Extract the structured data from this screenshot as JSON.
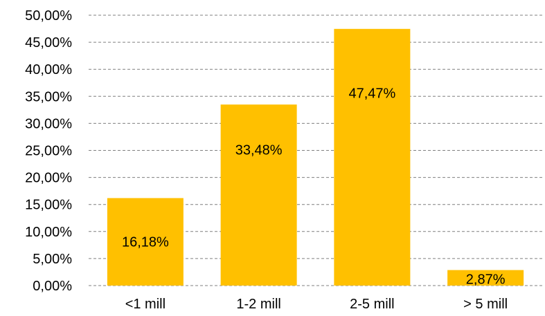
{
  "chart_data": {
    "type": "bar",
    "categories": [
      "<1 mill",
      "1-2 mill",
      "2-5 mill",
      "> 5 mill"
    ],
    "values": [
      16.18,
      33.48,
      47.47,
      2.87
    ],
    "data_labels": [
      "16,18%",
      "33,48%",
      "47,47%",
      "2,87%"
    ],
    "ylim": [
      0,
      50
    ],
    "y_ticks": [
      0,
      5,
      10,
      15,
      20,
      25,
      30,
      35,
      40,
      45,
      50
    ],
    "y_tick_labels": [
      "0,00%",
      "5,00%",
      "10,00%",
      "15,00%",
      "20,00%",
      "25,00%",
      "30,00%",
      "35,00%",
      "40,00%",
      "45,00%",
      "50,00%"
    ],
    "grid": true,
    "legend": "none",
    "bar_color": "#FFC000",
    "grid_color": "#7F7F7F"
  }
}
